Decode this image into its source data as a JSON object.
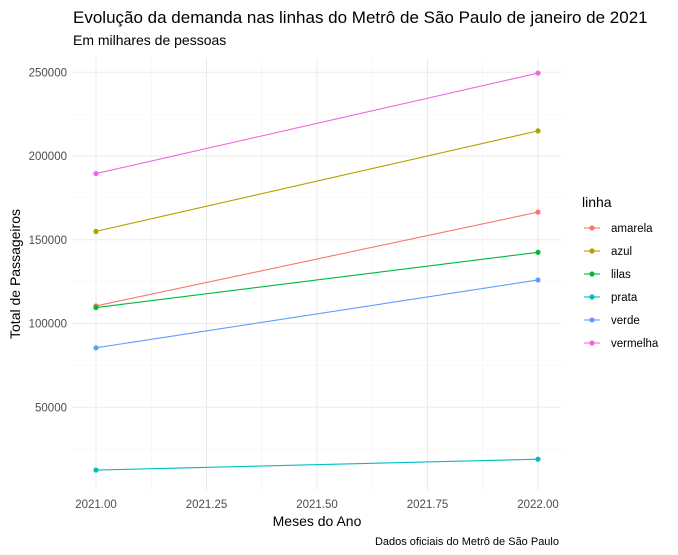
{
  "chart_data": {
    "type": "line",
    "title": "Evolução da demanda nas linhas do Metrô de São Paulo de janeiro de 2021",
    "subtitle": "Em milhares de pessoas",
    "xlabel": "Meses do Ano",
    "ylabel": "Total de Passageiros",
    "caption": "Dados oficiais do Metrô de São Paulo",
    "xlim": [
      2021.0,
      2022.0
    ],
    "ylim": [
      0,
      262000
    ],
    "x": [
      2021.0,
      2022.0
    ],
    "x_ticks": [
      2021.0,
      2021.25,
      2021.5,
      2021.75,
      2022.0
    ],
    "x_tick_labels": [
      "2021.00",
      "2021.25",
      "2021.50",
      "2021.75",
      "2022.00"
    ],
    "y_ticks": [
      50000,
      100000,
      150000,
      200000,
      250000
    ],
    "y_tick_labels": [
      "50000",
      "100000",
      "150000",
      "200000",
      "250000"
    ],
    "grid": true,
    "legend": {
      "title": "linha",
      "position": "right"
    },
    "series": [
      {
        "name": "amarela",
        "color": "#F8766D",
        "values": [
          110500,
          166500
        ]
      },
      {
        "name": "azul",
        "color": "#B79F00",
        "values": [
          155000,
          215000
        ]
      },
      {
        "name": "lilas",
        "color": "#00BA38",
        "values": [
          109500,
          142500
        ]
      },
      {
        "name": "prata",
        "color": "#00BFC4",
        "values": [
          12500,
          19000
        ]
      },
      {
        "name": "verde",
        "color": "#619CFF",
        "values": [
          85500,
          126000
        ]
      },
      {
        "name": "vermelha",
        "color": "#F564E3",
        "values": [
          189500,
          249500
        ]
      }
    ]
  }
}
